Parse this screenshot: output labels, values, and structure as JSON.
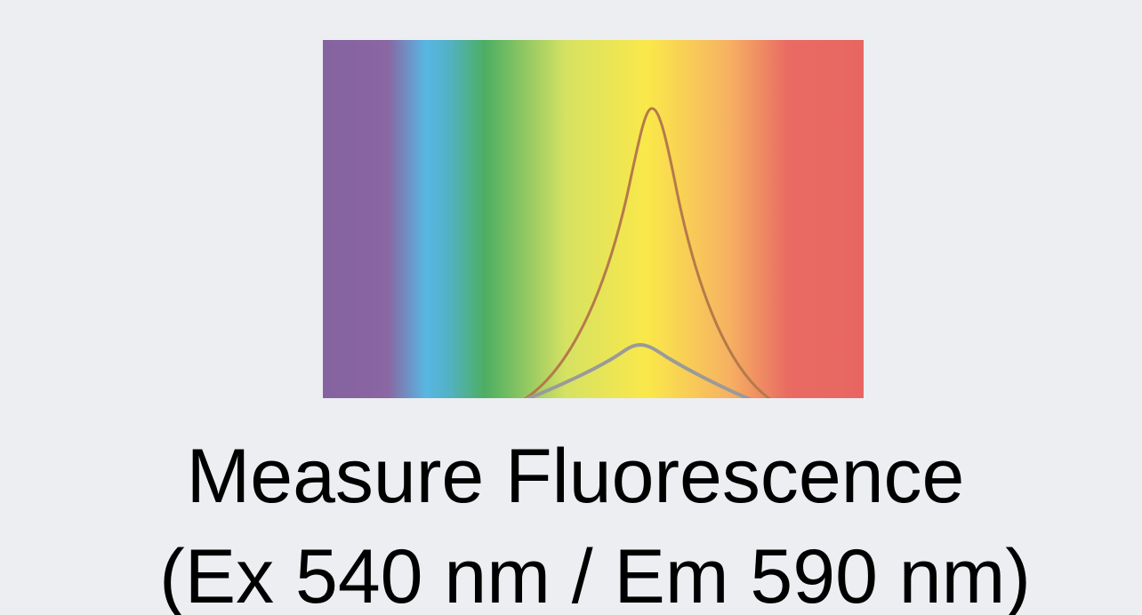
{
  "caption": {
    "line1": "Measure Fluorescence",
    "line2": "(Ex 540 nm / Em 590 nm)"
  }
}
